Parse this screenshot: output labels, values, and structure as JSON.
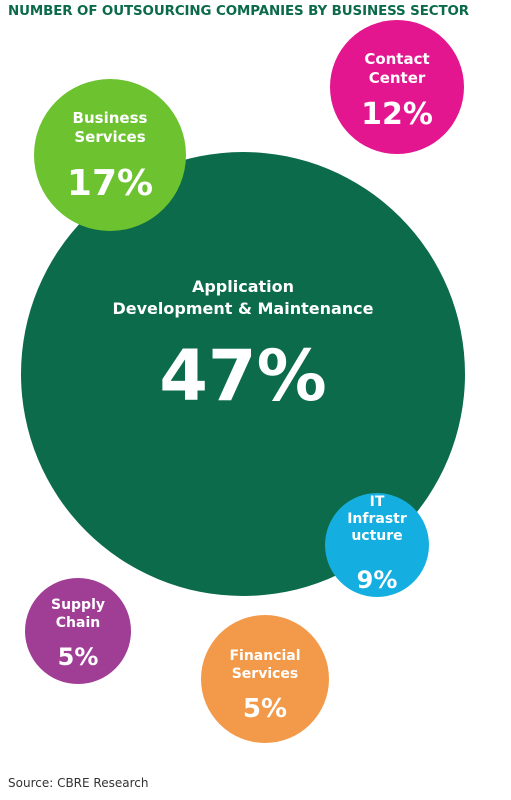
{
  "title": "NUMBER OF OUTSOURCING COMPANIES BY BUSINESS SECTOR",
  "source": "Source: CBRE Research",
  "chart_data": {
    "type": "bubble",
    "title": "NUMBER OF OUTSOURCING COMPANIES BY BUSINESS SECTOR",
    "unit": "%",
    "series": [
      {
        "label_lines": [
          "Application",
          "Development & Maintenance"
        ],
        "value": 47,
        "display": "47%",
        "color": "#0b6b4a"
      },
      {
        "label_lines": [
          "Business",
          "Services"
        ],
        "value": 17,
        "display": "17%",
        "color": "#6cc22f"
      },
      {
        "label_lines": [
          "Contact",
          "Center"
        ],
        "value": 12,
        "display": "12%",
        "color": "#e3158f"
      },
      {
        "label_lines": [
          "IT",
          "Infrastr",
          "ucture"
        ],
        "value": 9,
        "display": "9%",
        "color": "#14aee0"
      },
      {
        "label_lines": [
          "Supply",
          "Chain"
        ],
        "value": 5,
        "display": "5%",
        "color": "#a03e96"
      },
      {
        "label_lines": [
          "Financial",
          "Services"
        ],
        "value": 5,
        "display": "5%",
        "color": "#f39a4a"
      }
    ]
  }
}
